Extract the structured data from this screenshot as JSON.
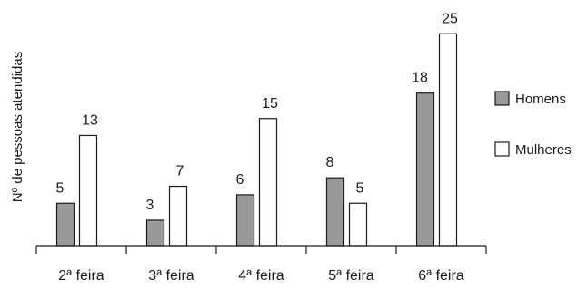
{
  "chart_data": {
    "type": "bar",
    "ylabel": "Nº de pessoas atendidas",
    "categories": [
      "2ª feira",
      "3ª feira",
      "4ª feira",
      "5ª feira",
      "6ª feira"
    ],
    "series": [
      {
        "name": "Homens",
        "values": [
          5,
          3,
          6,
          8,
          18
        ],
        "color": "#999999"
      },
      {
        "name": "Mulheres",
        "values": [
          13,
          7,
          15,
          5,
          25
        ],
        "color": "#ffffff"
      }
    ],
    "ylim": [
      0,
      25
    ],
    "grid": false,
    "legend": "right",
    "data_labels": true
  }
}
